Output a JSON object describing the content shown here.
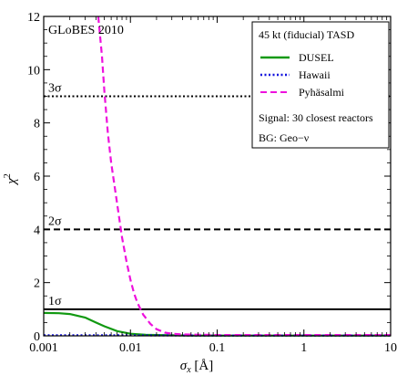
{
  "chart_data": {
    "type": "line",
    "xscale": "log",
    "xlim": [
      0.001,
      10
    ],
    "ylim": [
      0,
      12
    ],
    "xticks": [
      {
        "value": 0.001,
        "label": "0.001"
      },
      {
        "value": 0.01,
        "label": "0.01"
      },
      {
        "value": 0.1,
        "label": "0.1"
      },
      {
        "value": 1,
        "label": "1"
      },
      {
        "value": 10,
        "label": "10"
      }
    ],
    "yticks": [
      {
        "value": 0,
        "label": "0"
      },
      {
        "value": 2,
        "label": "2"
      },
      {
        "value": 4,
        "label": "4"
      },
      {
        "value": 6,
        "label": "6"
      },
      {
        "value": 8,
        "label": "8"
      },
      {
        "value": 10,
        "label": "10"
      },
      {
        "value": 12,
        "label": "12"
      }
    ],
    "xlabel_main": "σ",
    "xlabel_sub": "x",
    "xlabel_unit": " [Å]",
    "ylabel_main": "χ",
    "ylabel_sup": "2",
    "corner_label": "GLoBES 2010",
    "legend": {
      "title": "45 kt (fiducial) TASD",
      "signal": "Signal: 30 closest reactors",
      "background": "BG: Geo−ν"
    },
    "reference_lines": [
      {
        "y": 1,
        "label": "1σ",
        "style": "solid"
      },
      {
        "y": 4,
        "label": "2σ",
        "style": "dashed"
      },
      {
        "y": 9,
        "label": "3σ",
        "style": "dotted"
      }
    ],
    "series": [
      {
        "name": "DUSEL",
        "color": "#119911",
        "style": "solid",
        "points": [
          [
            0.001,
            0.86
          ],
          [
            0.0015,
            0.85
          ],
          [
            0.002,
            0.82
          ],
          [
            0.003,
            0.69
          ],
          [
            0.004,
            0.5
          ],
          [
            0.005,
            0.36
          ],
          [
            0.007,
            0.18
          ],
          [
            0.01,
            0.08
          ],
          [
            0.015,
            0.04
          ],
          [
            0.02,
            0.03
          ],
          [
            0.03,
            0.02
          ],
          [
            0.05,
            0.01
          ],
          [
            0.1,
            0.01
          ],
          [
            1,
            0.01
          ],
          [
            10,
            0.01
          ]
        ]
      },
      {
        "name": "Hawaii",
        "color": "#1111dd",
        "style": "dotted",
        "points": [
          [
            0.001,
            0.02
          ],
          [
            0.01,
            0.02
          ],
          [
            0.1,
            0.01
          ],
          [
            1,
            0.01
          ],
          [
            10,
            0.01
          ]
        ]
      },
      {
        "name": "Pyhäsalmi",
        "color": "#ee11dd",
        "style": "dashed",
        "points": [
          [
            0.00425,
            12
          ],
          [
            0.0047,
            10.5
          ],
          [
            0.005,
            9.2
          ],
          [
            0.0055,
            7.6
          ],
          [
            0.006,
            6.5
          ],
          [
            0.007,
            5.0
          ],
          [
            0.008,
            3.7
          ],
          [
            0.009,
            2.8
          ],
          [
            0.01,
            2.1
          ],
          [
            0.011,
            1.6
          ],
          [
            0.012,
            1.25
          ],
          [
            0.014,
            0.8
          ],
          [
            0.017,
            0.45
          ],
          [
            0.02,
            0.25
          ],
          [
            0.025,
            0.12
          ],
          [
            0.03,
            0.08
          ],
          [
            0.04,
            0.05
          ],
          [
            0.1,
            0.03
          ],
          [
            1,
            0.03
          ],
          [
            10,
            0.03
          ]
        ]
      }
    ]
  }
}
